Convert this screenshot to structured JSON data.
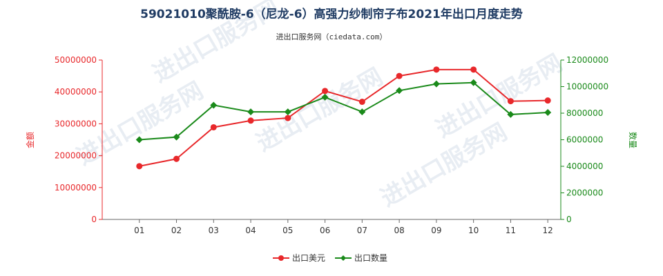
{
  "chart_data": {
    "type": "line",
    "title": "59021010聚酰胺-6（尼龙-6）高强力纱制帘子布2021年出口月度走势",
    "subtitle": "进出口服务网（ciedata.com）",
    "categories": [
      "01",
      "02",
      "03",
      "04",
      "05",
      "06",
      "07",
      "08",
      "09",
      "10",
      "11",
      "12"
    ],
    "y_left": {
      "label": "金额",
      "ylim": [
        0,
        50000000
      ],
      "ticks": [
        "0",
        "10000000",
        "20000000",
        "30000000",
        "40000000",
        "50000000"
      ],
      "color": "#e8282b"
    },
    "y_right": {
      "label": "数量",
      "ylim": [
        0,
        12000000
      ],
      "ticks": [
        "0",
        "2000000",
        "4000000",
        "6000000",
        "8000000",
        "10000000",
        "12000000"
      ],
      "color": "#1a8a1a"
    },
    "series": [
      {
        "name": "出口美元",
        "axis": "left",
        "color": "#e8282b",
        "marker": "circle",
        "values": [
          16700000,
          19000000,
          28900000,
          31000000,
          31800000,
          40300000,
          36900000,
          45000000,
          47000000,
          47000000,
          37100000,
          37300000
        ]
      },
      {
        "name": "出口数量",
        "axis": "right",
        "color": "#1a8a1a",
        "marker": "diamond",
        "values": [
          6000000,
          6200000,
          8600000,
          8100000,
          8100000,
          9200000,
          8100000,
          9700000,
          10200000,
          10300000,
          7900000,
          8050000
        ]
      }
    ],
    "grid": false,
    "legend_position": "bottom-center",
    "watermark": "进出口服务网"
  }
}
